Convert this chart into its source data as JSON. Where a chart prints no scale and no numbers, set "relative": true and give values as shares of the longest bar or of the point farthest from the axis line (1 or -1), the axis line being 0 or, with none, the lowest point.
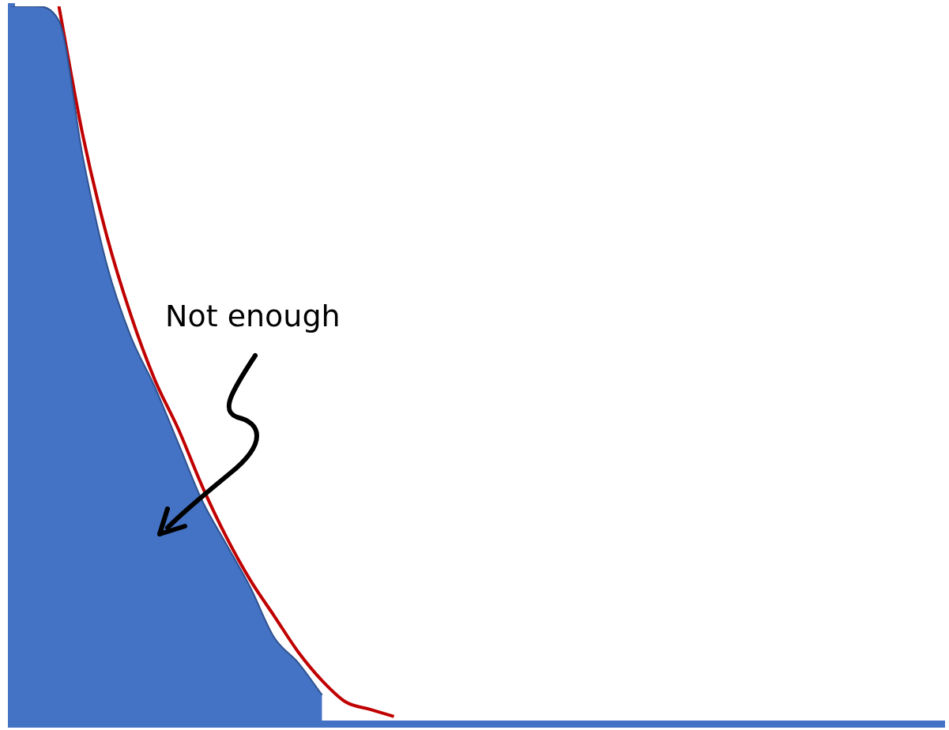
{
  "chart_data": {
    "type": "area",
    "relative": true,
    "legend": false,
    "grid": false,
    "tick_labels": false,
    "marker": "none",
    "categories": [
      null,
      null,
      null,
      null,
      null,
      null,
      null,
      null,
      null,
      null,
      null,
      null,
      null,
      null,
      null,
      null,
      null,
      null,
      null,
      null,
      null,
      null,
      null,
      null,
      null,
      null,
      null,
      null,
      null,
      null,
      null,
      null,
      null,
      null,
      null,
      null,
      null,
      null,
      null,
      null
    ],
    "series": [
      {
        "type": "area",
        "color": "#4472c4",
        "values": [
          1,
          1,
          0.98,
          0.79,
          0.64,
          0.54,
          0.47,
          0.39,
          0.31,
          0.25,
          0.19,
          0.12,
          0.085,
          0.04,
          null,
          null,
          null,
          null,
          null,
          null,
          null,
          null,
          null,
          null,
          null,
          null,
          null,
          null,
          null,
          null,
          null,
          null,
          null,
          null,
          null,
          null,
          null,
          null,
          null,
          null
        ]
      },
      {
        "type": "line",
        "color": "#c00000",
        "values": [
          null,
          null,
          1,
          0.82,
          0.68,
          0.57,
          0.48,
          0.41,
          0.33,
          0.26,
          0.2,
          0.15,
          0.1,
          0.06,
          0.03,
          0.02,
          0.01,
          null,
          null,
          null,
          null,
          null,
          null,
          null,
          null,
          null,
          null,
          null,
          null,
          null,
          null,
          null,
          null,
          null,
          null,
          null,
          null,
          null,
          null,
          null
        ]
      }
    ],
    "annotations": [
      "Not enough"
    ]
  }
}
